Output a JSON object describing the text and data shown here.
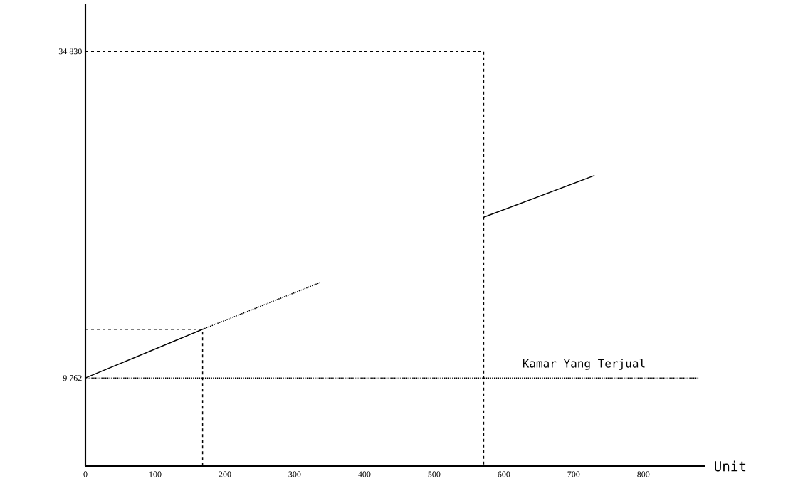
{
  "chart_data": {
    "type": "line",
    "xlabel": "Unit",
    "annotations": [
      "Kamar Yang Terjual"
    ],
    "xlim": [
      0,
      888
    ],
    "ylim": [
      3000,
      38500
    ],
    "xticks": [
      0,
      100,
      200,
      300,
      400,
      500,
      600,
      700,
      800
    ],
    "yticks": [
      {
        "value": 9762,
        "label": "9 762"
      },
      {
        "value": 34830,
        "label": "34 830"
      }
    ],
    "grid": false,
    "series": [
      {
        "color": "#000000",
        "line_style": "dotted",
        "x": [
          0,
          880
        ],
        "values": [
          9762,
          9762
        ]
      },
      {
        "color": "#000000",
        "line_style": "solid",
        "x": [
          0,
          168
        ],
        "values": [
          9762,
          13500
        ]
      },
      {
        "color": "#000000",
        "line_style": "dotted",
        "x": [
          168,
          337
        ],
        "values": [
          13500,
          17100
        ]
      },
      {
        "color": "#000000",
        "line_style": "dashed",
        "x": [
          0,
          168,
          168
        ],
        "values": [
          13500,
          13500,
          3000
        ]
      },
      {
        "color": "#000000",
        "line_style": "dashed",
        "x": [
          0,
          571,
          571
        ],
        "values": [
          34830,
          34830,
          3000
        ]
      },
      {
        "color": "#000000",
        "line_style": "solid",
        "x": [
          571,
          730
        ],
        "values": [
          22100,
          25300
        ]
      }
    ]
  }
}
